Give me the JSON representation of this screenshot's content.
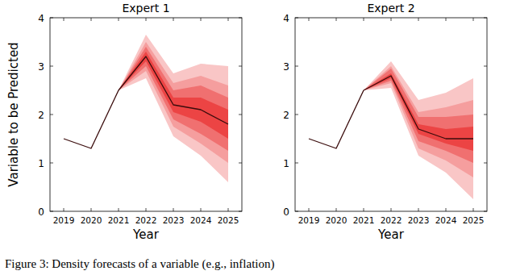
{
  "chart_data": [
    {
      "type": "line",
      "title": "Expert 1",
      "x_label": "Year",
      "y_label": "Variable to be Predicted",
      "x": [
        2019,
        2020,
        2021,
        2022,
        2023,
        2024,
        2025
      ],
      "xlim": [
        2018.5,
        2025.5
      ],
      "xticks": [
        2019,
        2020,
        2021,
        2022,
        2023,
        2024,
        2025
      ],
      "ylim": [
        0,
        4
      ],
      "yticks": [
        0,
        1,
        2,
        3,
        4
      ],
      "bands": [
        {
          "color": "#f9c6c6",
          "lower": [
            null,
            null,
            2.5,
            2.75,
            1.55,
            1.15,
            0.6
          ],
          "upper": [
            null,
            null,
            2.5,
            3.65,
            2.85,
            3.05,
            3.0
          ]
        },
        {
          "color": "#f59e9e",
          "lower": [
            null,
            null,
            2.5,
            2.9,
            1.75,
            1.4,
            1.0
          ],
          "upper": [
            null,
            null,
            2.5,
            3.5,
            2.65,
            2.8,
            2.6
          ]
        },
        {
          "color": "#f07070",
          "lower": [
            null,
            null,
            2.5,
            3.0,
            1.9,
            1.6,
            1.25
          ],
          "upper": [
            null,
            null,
            2.5,
            3.4,
            2.5,
            2.6,
            2.35
          ]
        },
        {
          "color": "#ec4444",
          "lower": [
            null,
            null,
            2.5,
            3.1,
            2.05,
            1.85,
            1.5
          ],
          "upper": [
            null,
            null,
            2.5,
            3.3,
            2.35,
            2.35,
            2.1
          ]
        }
      ],
      "series": [
        {
          "color": "#3a0c0c",
          "values": [
            1.5,
            1.3,
            2.5,
            3.2,
            2.2,
            2.1,
            1.8
          ]
        }
      ]
    },
    {
      "type": "line",
      "title": "Expert 2",
      "x_label": "Year",
      "x": [
        2019,
        2020,
        2021,
        2022,
        2023,
        2024,
        2025
      ],
      "xlim": [
        2018.5,
        2025.5
      ],
      "xticks": [
        2019,
        2020,
        2021,
        2022,
        2023,
        2024,
        2025
      ],
      "ylim": [
        0,
        4
      ],
      "yticks": [
        0,
        1,
        2,
        3,
        4
      ],
      "bands": [
        {
          "color": "#f9c6c6",
          "lower": [
            null,
            null,
            2.5,
            2.55,
            1.15,
            0.8,
            0.25
          ],
          "upper": [
            null,
            null,
            2.5,
            3.1,
            2.3,
            2.45,
            2.75
          ]
        },
        {
          "color": "#f59e9e",
          "lower": [
            null,
            null,
            2.5,
            2.65,
            1.3,
            1.05,
            0.7
          ],
          "upper": [
            null,
            null,
            2.5,
            3.0,
            2.05,
            2.15,
            2.3
          ]
        },
        {
          "color": "#f07070",
          "lower": [
            null,
            null,
            2.5,
            2.7,
            1.45,
            1.25,
            1.0
          ],
          "upper": [
            null,
            null,
            2.5,
            2.95,
            1.95,
            1.95,
            2.0
          ]
        },
        {
          "color": "#ec4444",
          "lower": [
            null,
            null,
            2.5,
            2.75,
            1.6,
            1.4,
            1.25
          ],
          "upper": [
            null,
            null,
            2.5,
            2.85,
            1.8,
            1.7,
            1.75
          ]
        }
      ],
      "series": [
        {
          "color": "#3a0c0c",
          "values": [
            1.5,
            1.3,
            2.5,
            2.8,
            1.7,
            1.5,
            1.5
          ]
        }
      ]
    }
  ],
  "caption": "Figure 3: Density forecasts of a variable (e.g., inflation)"
}
